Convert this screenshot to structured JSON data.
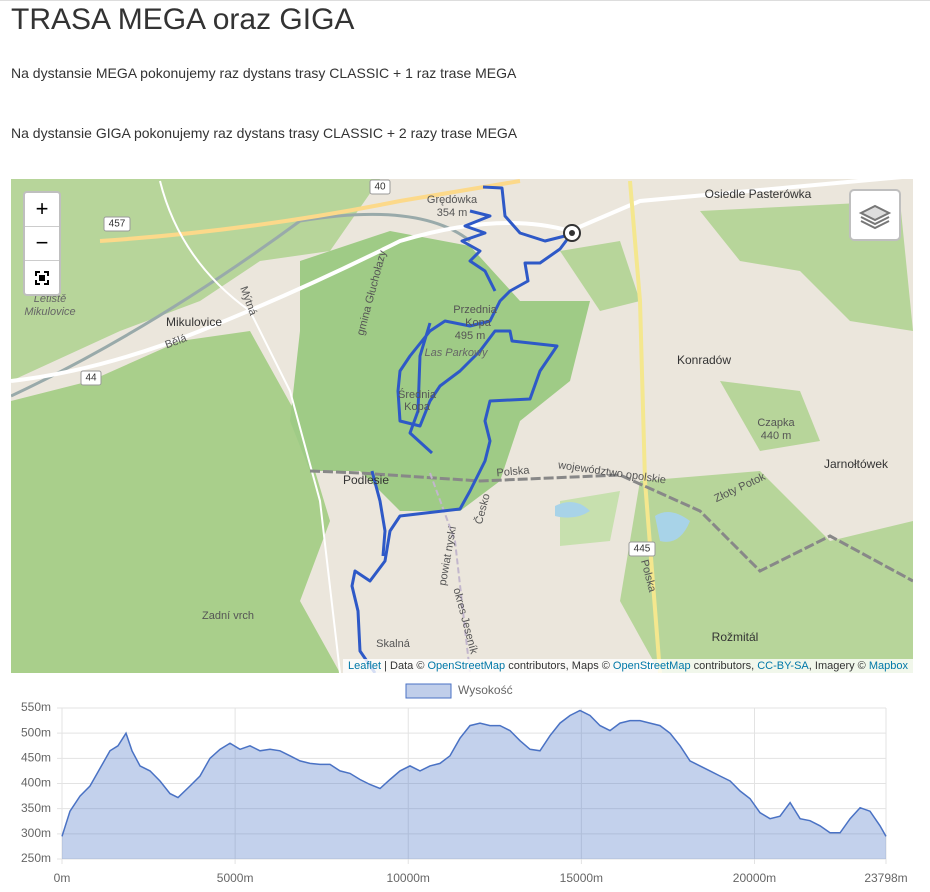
{
  "header": {
    "title": "TRASA MEGA oraz GIGA"
  },
  "paragraphs": [
    "Na dystansie MEGA pokonujemy raz dystans trasy CLASSIC + 1 raz trase MEGA",
    "Na dystansie GIGA pokonujemy raz dystans trasy CLASSIC + 2 razy trase MEGA"
  ],
  "map": {
    "controls": {
      "zoom_in": "+",
      "zoom_out": "−"
    },
    "labels": [
      "Osiedle Pasterówka",
      "Grędówka",
      "354 m",
      "40",
      "457",
      "Letiště",
      "Mikulovice",
      "Mikulovice",
      "44",
      "gmina Głuchołazy",
      "Przednia",
      "Kopa",
      "495 m",
      "Las Parkowy",
      "Średnia",
      "Kopa",
      "Konradów",
      "Czapka",
      "440 m",
      "Jarnołtówek",
      "Polska",
      "województwo opolskie",
      "Złoty Potok",
      "Podlesie",
      "Česko",
      "powiat nyski",
      "okres Jeseník",
      "445",
      "Polska",
      "Zadní vrch",
      "Skalná",
      "Rožmitál",
      "Bělá",
      "Mýtná"
    ],
    "attribution": [
      "Leaflet",
      " | Data © ",
      "OpenStreetMap",
      " contributors, Maps © ",
      "OpenStreetMap",
      " contributors, ",
      "CC-BY-SA",
      ", Imagery © ",
      "Mapbox"
    ]
  },
  "chart_data": {
    "type": "area",
    "x": [
      0,
      231,
      520,
      809,
      1097,
      1386,
      1617,
      1848,
      2022,
      2253,
      2542,
      2831,
      3119,
      3350,
      3697,
      3985,
      4274,
      4563,
      4852,
      5141,
      5430,
      5718,
      6007,
      6296,
      6585,
      6874,
      7163,
      7451,
      7740,
      8029,
      8318,
      8607,
      8896,
      9185,
      9473,
      9762,
      10051,
      10340,
      10629,
      10918,
      11206,
      11495,
      11784,
      12073,
      12362,
      12651,
      12939,
      13228,
      13517,
      13806,
      14095,
      14384,
      14672,
      14961,
      15250,
      15539,
      15828,
      16117,
      16405,
      16694,
      16983,
      17272,
      17561,
      17850,
      18138,
      18427,
      18716,
      19005,
      19294,
      19583,
      19871,
      20160,
      20449,
      20738,
      21027,
      21316,
      21604,
      21893,
      22182,
      22471,
      22760,
      23049,
      23337,
      23626,
      23798
    ],
    "series": [
      {
        "name": "Wysokość",
        "color": "#4a72c4",
        "values": [
          295,
          345,
          375,
          395,
          430,
          465,
          475,
          500,
          465,
          435,
          425,
          405,
          380,
          372,
          395,
          415,
          450,
          468,
          480,
          468,
          475,
          465,
          468,
          465,
          455,
          445,
          440,
          438,
          438,
          425,
          420,
          408,
          398,
          390,
          408,
          425,
          435,
          425,
          435,
          440,
          455,
          490,
          515,
          520,
          515,
          515,
          505,
          485,
          468,
          465,
          495,
          520,
          535,
          545,
          535,
          515,
          505,
          520,
          525,
          525,
          520,
          515,
          500,
          475,
          445,
          435,
          425,
          415,
          405,
          385,
          370,
          342,
          330,
          335,
          362,
          330,
          326,
          316,
          302,
          302,
          330,
          352,
          345,
          316,
          295
        ]
      }
    ],
    "xlim": [
      0,
      23798
    ],
    "ylim": [
      250,
      550
    ],
    "xticks": [
      {
        "value": 0,
        "label": "0m"
      },
      {
        "value": 5000,
        "label": "5000m"
      },
      {
        "value": 10000,
        "label": "10000m"
      },
      {
        "value": 15000,
        "label": "15000m"
      },
      {
        "value": 20000,
        "label": "20000m"
      },
      {
        "value": 23798,
        "label": "23798m"
      }
    ],
    "yticks": [
      {
        "value": 250,
        "label": "250m"
      },
      {
        "value": 300,
        "label": "300m"
      },
      {
        "value": 350,
        "label": "350m"
      },
      {
        "value": 400,
        "label": "400m"
      },
      {
        "value": 450,
        "label": "450m"
      },
      {
        "value": 500,
        "label": "500m"
      },
      {
        "value": 550,
        "label": "550m"
      }
    ],
    "grid": true
  }
}
